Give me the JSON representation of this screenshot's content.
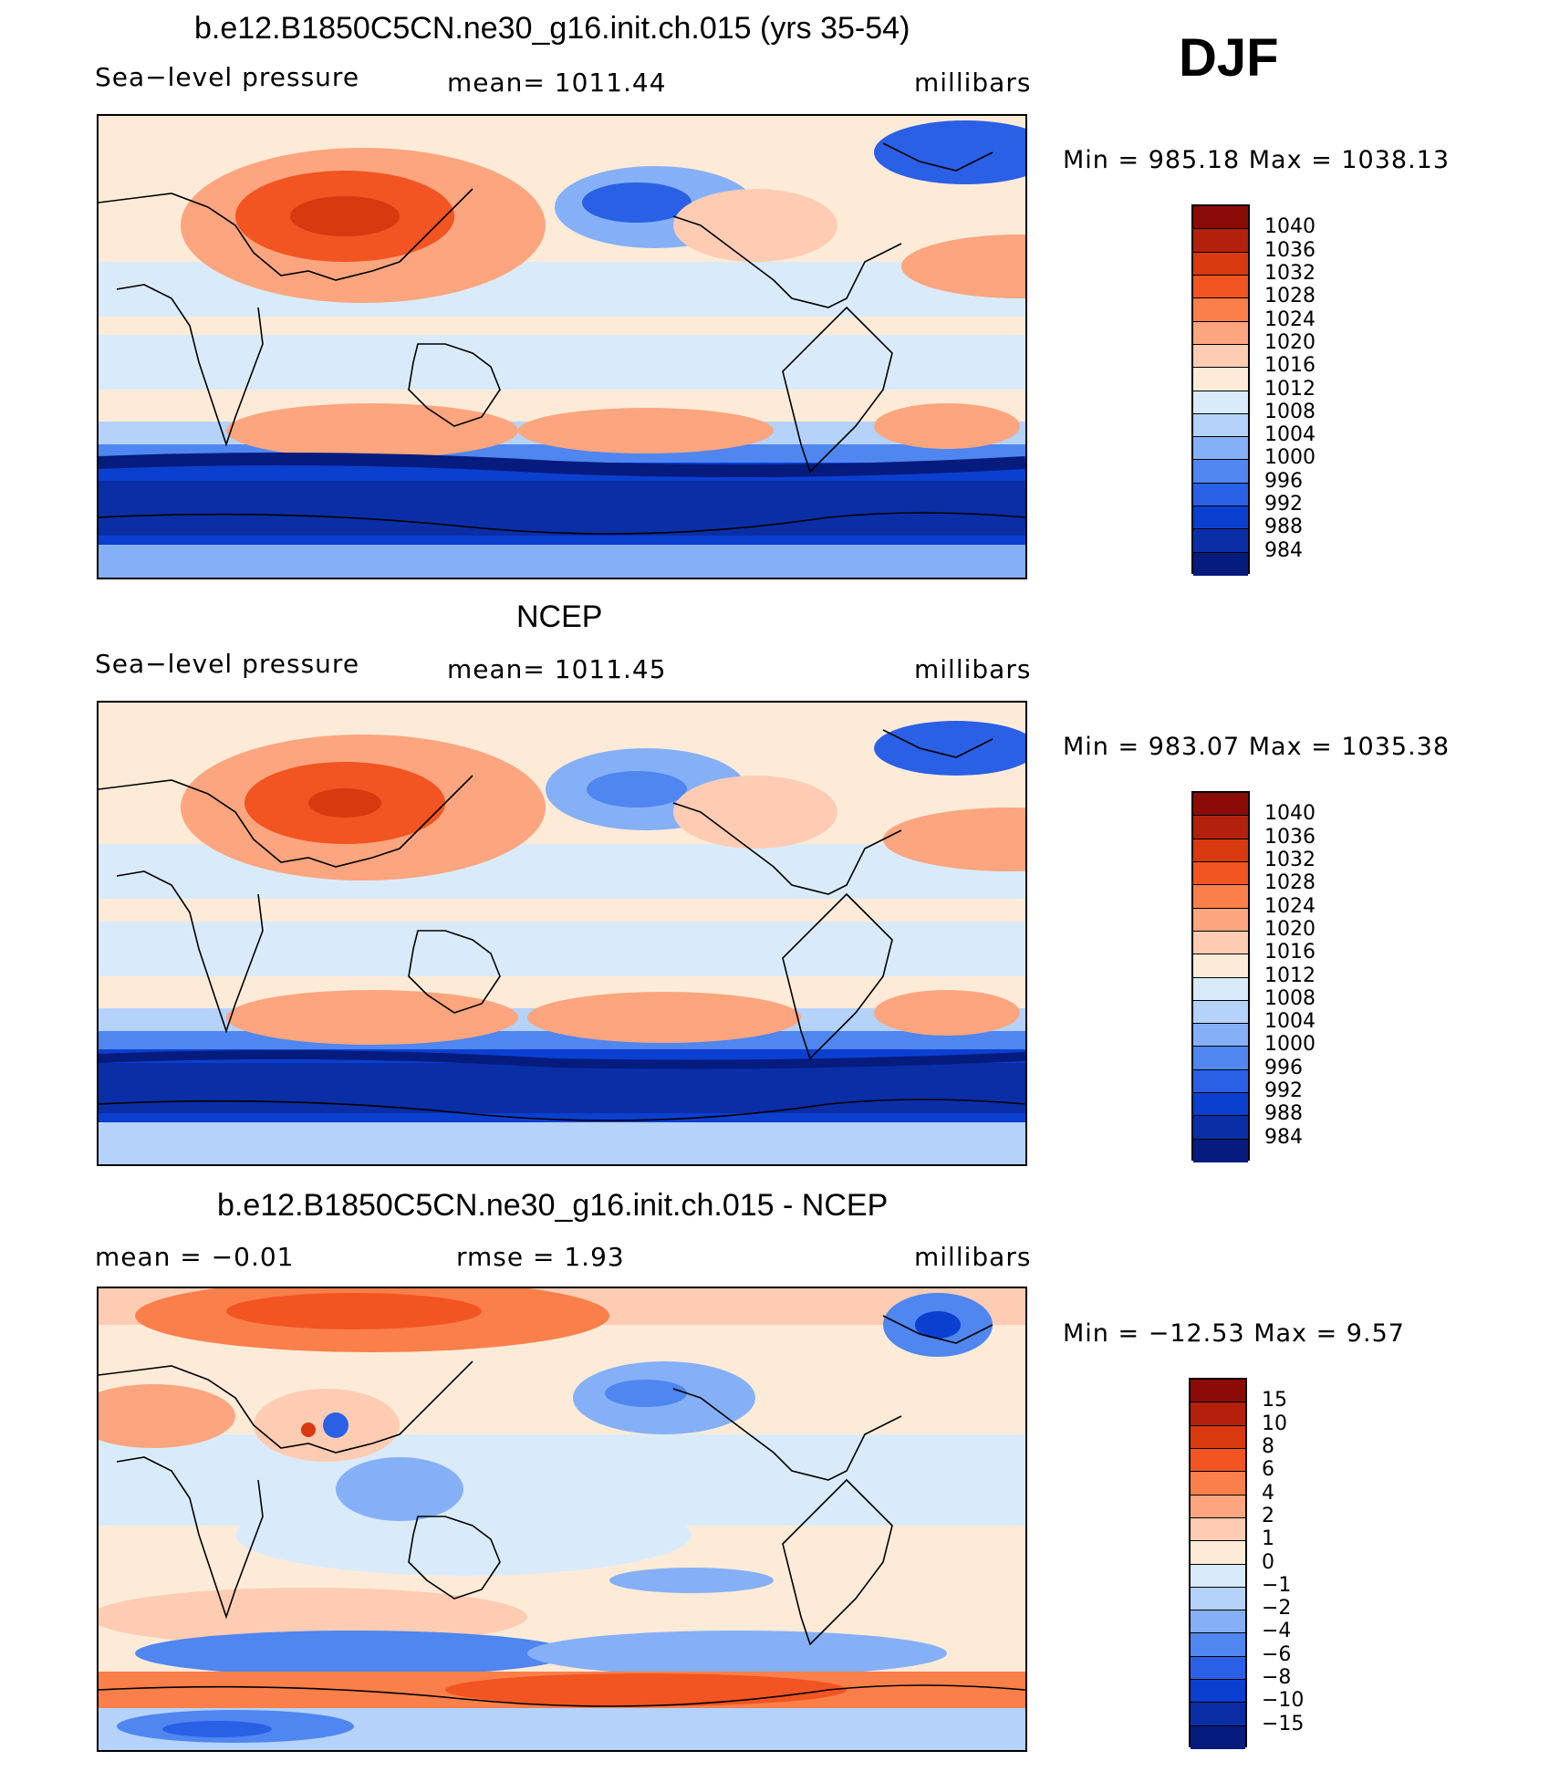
{
  "season": "DJF",
  "panels": [
    {
      "title": "b.e12.B1850C5CN.ne30_g16.init.ch.015 (yrs 35-54)",
      "left_label": "Sea−level pressure",
      "center_label": "mean=  1011.44",
      "units": "millibars",
      "minmax": "Min  =  985.18  Max  =  1038.13"
    },
    {
      "title": "NCEP",
      "left_label": "Sea−level pressure",
      "center_label": "mean=  1011.45",
      "units": "millibars",
      "minmax": "Min  =  983.07  Max  =  1035.38"
    },
    {
      "title": "b.e12.B1850C5CN.ne30_g16.init.ch.015 - NCEP",
      "left_label": "mean  =    −0.01",
      "center_label": "rmse  =      1.93",
      "units": "millibars",
      "minmax": "Min  =  −12.53  Max  =      9.57"
    }
  ],
  "colorbar_abs": {
    "labels": [
      "1040",
      "1036",
      "1032",
      "1028",
      "1024",
      "1020",
      "1016",
      "1012",
      "1008",
      "1004",
      "1000",
      "996",
      "992",
      "988",
      "984"
    ],
    "colors": [
      "#8b0b06",
      "#b3200c",
      "#d9390e",
      "#f25422",
      "#fb7f4b",
      "#fda57e",
      "#fdccb3",
      "#fdebd8",
      "#d9ebfb",
      "#b5d2fb",
      "#85b0f7",
      "#4f86f0",
      "#2a60e6",
      "#0b3fd0",
      "#0a2ea6",
      "#061b7e"
    ]
  },
  "colorbar_diff": {
    "labels": [
      "15",
      "10",
      "8",
      "6",
      "4",
      "2",
      "1",
      "0",
      "−1",
      "−2",
      "−4",
      "−6",
      "−8",
      "−10",
      "−15"
    ],
    "colors": [
      "#8b0b06",
      "#b3200c",
      "#d9390e",
      "#f25422",
      "#fb7f4b",
      "#fda57e",
      "#fdccb3",
      "#fdebd8",
      "#d9ebfb",
      "#b5d2fb",
      "#85b0f7",
      "#4f86f0",
      "#2a60e6",
      "#0b3fd0",
      "#0a2ea6",
      "#061b7e"
    ]
  },
  "chart_data": [
    {
      "type": "heatmap",
      "title": "b.e12.B1850C5CN.ne30_g16.init.ch.015 (yrs 35-54)",
      "variable": "Sea-level pressure",
      "units": "millibars",
      "mean": 1011.44,
      "min": 985.18,
      "max": 1038.13,
      "levels": [
        984,
        988,
        992,
        996,
        1000,
        1004,
        1008,
        1012,
        1016,
        1020,
        1024,
        1028,
        1032,
        1036,
        1040
      ]
    },
    {
      "type": "heatmap",
      "title": "NCEP",
      "variable": "Sea-level pressure",
      "units": "millibars",
      "mean": 1011.45,
      "min": 983.07,
      "max": 1035.38,
      "levels": [
        984,
        988,
        992,
        996,
        1000,
        1004,
        1008,
        1012,
        1016,
        1020,
        1024,
        1028,
        1032,
        1036,
        1040
      ]
    },
    {
      "type": "heatmap",
      "title": "b.e12.B1850C5CN.ne30_g16.init.ch.015 - NCEP",
      "units": "millibars",
      "mean": -0.01,
      "rmse": 1.93,
      "min": -12.53,
      "max": 9.57,
      "levels": [
        -15,
        -10,
        -8,
        -6,
        -4,
        -2,
        -1,
        0,
        1,
        2,
        4,
        6,
        8,
        10,
        15
      ]
    }
  ]
}
